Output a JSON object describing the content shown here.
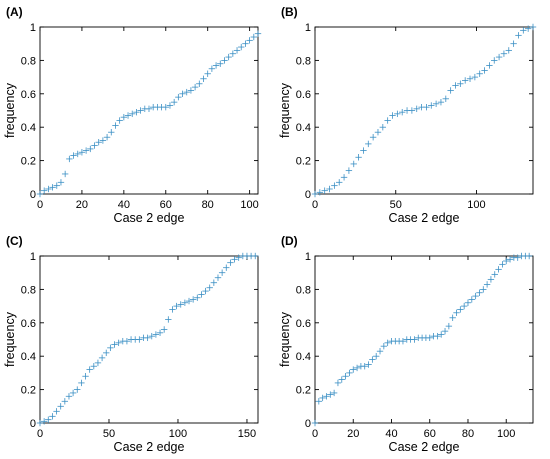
{
  "chart_data": [
    {
      "type": "scatter",
      "panel_label": "(A)",
      "xlabel": "Case 2 edge",
      "ylabel": "frequency",
      "xlim": [
        0,
        104
      ],
      "ylim": [
        0,
        1
      ],
      "xticks": [
        0,
        20,
        40,
        60,
        80,
        100
      ],
      "yticks": [
        0,
        0.2,
        0.4,
        0.6,
        0.8,
        1
      ],
      "marker": "+",
      "color": "#3a8fc4",
      "x": [
        0,
        2,
        4,
        6,
        8,
        10,
        12,
        14,
        16,
        18,
        20,
        22,
        24,
        26,
        28,
        30,
        32,
        34,
        36,
        38,
        40,
        42,
        44,
        46,
        48,
        50,
        52,
        54,
        56,
        58,
        60,
        62,
        64,
        66,
        68,
        70,
        72,
        74,
        76,
        78,
        80,
        82,
        84,
        86,
        88,
        90,
        92,
        94,
        96,
        98,
        100,
        102,
        104
      ],
      "y": [
        0.0,
        0.02,
        0.03,
        0.04,
        0.05,
        0.07,
        0.12,
        0.21,
        0.23,
        0.24,
        0.25,
        0.26,
        0.27,
        0.29,
        0.31,
        0.32,
        0.34,
        0.37,
        0.41,
        0.44,
        0.46,
        0.47,
        0.48,
        0.49,
        0.5,
        0.51,
        0.51,
        0.52,
        0.52,
        0.52,
        0.52,
        0.53,
        0.55,
        0.58,
        0.6,
        0.61,
        0.62,
        0.64,
        0.66,
        0.69,
        0.72,
        0.75,
        0.77,
        0.78,
        0.8,
        0.82,
        0.84,
        0.86,
        0.88,
        0.9,
        0.92,
        0.94,
        0.96
      ]
    },
    {
      "type": "scatter",
      "panel_label": "(B)",
      "xlabel": "Case 2 edge",
      "ylabel": "frequency",
      "xlim": [
        0,
        135
      ],
      "ylim": [
        0,
        1
      ],
      "xticks": [
        0,
        50,
        100
      ],
      "yticks": [
        0,
        0.2,
        0.4,
        0.6,
        0.8,
        1
      ],
      "marker": "+",
      "color": "#3a8fc4",
      "x": [
        0,
        3,
        6,
        9,
        12,
        15,
        18,
        21,
        24,
        27,
        30,
        33,
        36,
        39,
        42,
        45,
        48,
        51,
        54,
        57,
        60,
        63,
        66,
        69,
        72,
        75,
        78,
        81,
        84,
        87,
        90,
        93,
        96,
        99,
        102,
        105,
        108,
        111,
        114,
        117,
        120,
        123,
        126,
        129,
        132,
        135
      ],
      "y": [
        0.0,
        0.01,
        0.02,
        0.03,
        0.05,
        0.07,
        0.1,
        0.14,
        0.18,
        0.22,
        0.26,
        0.3,
        0.34,
        0.37,
        0.4,
        0.44,
        0.47,
        0.48,
        0.49,
        0.5,
        0.5,
        0.51,
        0.52,
        0.52,
        0.53,
        0.54,
        0.55,
        0.57,
        0.62,
        0.65,
        0.66,
        0.68,
        0.69,
        0.7,
        0.72,
        0.74,
        0.77,
        0.8,
        0.82,
        0.84,
        0.86,
        0.9,
        0.95,
        0.98,
        0.99,
        1.0
      ]
    },
    {
      "type": "scatter",
      "panel_label": "(C)",
      "xlabel": "Case 2 edge",
      "ylabel": "frequency",
      "xlim": [
        0,
        158
      ],
      "ylim": [
        0,
        1
      ],
      "xticks": [
        0,
        50,
        100,
        150
      ],
      "yticks": [
        0,
        0.2,
        0.4,
        0.6,
        0.8,
        1
      ],
      "marker": "+",
      "color": "#3a8fc4",
      "x": [
        0,
        3,
        6,
        9,
        12,
        15,
        18,
        21,
        24,
        27,
        30,
        33,
        36,
        39,
        42,
        45,
        48,
        51,
        54,
        57,
        60,
        63,
        66,
        69,
        72,
        75,
        78,
        81,
        84,
        87,
        90,
        93,
        96,
        99,
        102,
        105,
        108,
        111,
        114,
        117,
        120,
        123,
        126,
        129,
        132,
        135,
        138,
        141,
        144,
        147,
        150,
        153,
        156
      ],
      "y": [
        0.0,
        0.01,
        0.02,
        0.04,
        0.07,
        0.1,
        0.13,
        0.16,
        0.18,
        0.2,
        0.24,
        0.28,
        0.32,
        0.34,
        0.36,
        0.39,
        0.42,
        0.45,
        0.47,
        0.48,
        0.49,
        0.49,
        0.5,
        0.5,
        0.5,
        0.51,
        0.51,
        0.52,
        0.53,
        0.54,
        0.56,
        0.62,
        0.68,
        0.7,
        0.71,
        0.72,
        0.73,
        0.74,
        0.75,
        0.77,
        0.79,
        0.81,
        0.84,
        0.87,
        0.9,
        0.93,
        0.96,
        0.98,
        0.99,
        1.0,
        1.0,
        1.0,
        1.0
      ]
    },
    {
      "type": "scatter",
      "panel_label": "(D)",
      "xlabel": "Case 2 edge",
      "ylabel": "frequency",
      "xlim": [
        0,
        114
      ],
      "ylim": [
        0,
        1
      ],
      "xticks": [
        0,
        20,
        40,
        60,
        80,
        100
      ],
      "yticks": [
        0,
        0.2,
        0.4,
        0.6,
        0.8,
        1
      ],
      "marker": "+",
      "color": "#3a8fc4",
      "x": [
        0,
        2,
        4,
        6,
        8,
        10,
        12,
        14,
        16,
        18,
        20,
        22,
        24,
        26,
        28,
        30,
        32,
        34,
        36,
        38,
        40,
        42,
        44,
        46,
        48,
        50,
        52,
        54,
        56,
        58,
        60,
        62,
        64,
        66,
        68,
        70,
        72,
        74,
        76,
        78,
        80,
        82,
        84,
        86,
        88,
        90,
        92,
        94,
        96,
        98,
        100,
        102,
        104,
        106,
        108,
        110,
        112
      ],
      "y": [
        0.0,
        0.13,
        0.15,
        0.16,
        0.17,
        0.18,
        0.24,
        0.26,
        0.28,
        0.3,
        0.32,
        0.33,
        0.34,
        0.34,
        0.35,
        0.38,
        0.4,
        0.43,
        0.46,
        0.48,
        0.49,
        0.49,
        0.49,
        0.49,
        0.5,
        0.5,
        0.5,
        0.51,
        0.51,
        0.51,
        0.51,
        0.52,
        0.52,
        0.53,
        0.55,
        0.58,
        0.63,
        0.66,
        0.68,
        0.7,
        0.72,
        0.74,
        0.76,
        0.78,
        0.8,
        0.83,
        0.86,
        0.89,
        0.92,
        0.95,
        0.97,
        0.98,
        0.99,
        0.99,
        1.0,
        1.0,
        1.0
      ]
    }
  ]
}
